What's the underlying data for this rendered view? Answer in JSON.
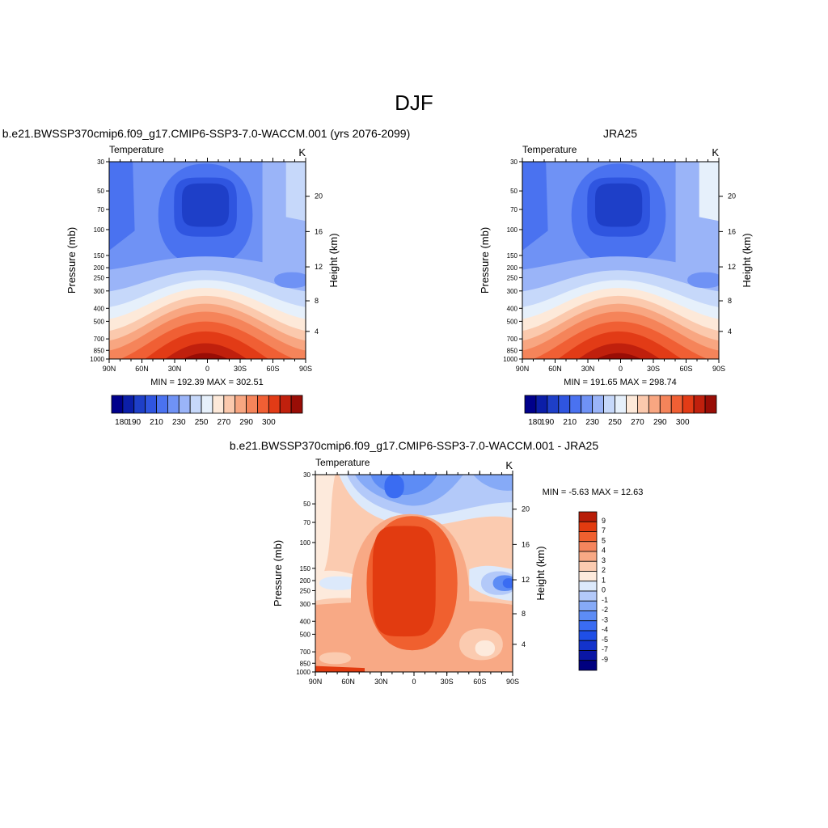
{
  "page_title": "DJF",
  "colors": {
    "temperature_scale": [
      "#00008b",
      "#0b1ea8",
      "#1e3fc8",
      "#2f55e0",
      "#4a72f0",
      "#6f92f5",
      "#9ab4f8",
      "#c6d8fa",
      "#e6f0fb",
      "#fde9d9",
      "#fbc9ad",
      "#f8a681",
      "#f5845a",
      "#f05f34",
      "#e23b16",
      "#c0200d",
      "#990d06",
      "#720000"
    ],
    "difference_scale": [
      "#00007f",
      "#0a16a4",
      "#1333cc",
      "#1f4fe6",
      "#3a6cf2",
      "#5d8cf5",
      "#86aaf7",
      "#b3c9f9",
      "#dce9fb",
      "#fdeadc",
      "#fbcbb0",
      "#f8a985",
      "#f5855d",
      "#f0602f",
      "#e23b10",
      "#b81d08",
      "#8b0000"
    ],
    "dif_lookup": {
      "-4": 4,
      "-3": 5,
      "-2": 6,
      "-1": 7,
      "0": 8,
      "1": 9,
      "2": 10,
      "3": 11,
      "4": 13,
      "5": 14
    }
  },
  "chart_data": [
    {
      "id": "model",
      "type": "heatmap",
      "title": "b.e21.BWSSP370cmip6.f09_g17.CMIP6-SSP3-7.0-WACCM.001 (yrs 2076-2099)",
      "left_label": "Temperature",
      "right_label": "K",
      "ylabel": "Pressure (mb)",
      "y2label": "Height (km)",
      "x_tick_labels": [
        "90N",
        "60N",
        "30N",
        "0",
        "30S",
        "60S",
        "90S"
      ],
      "y_tick_labels": [
        "30",
        "50",
        "70",
        "100",
        "150",
        "200",
        "250",
        "300",
        "400",
        "500",
        "700",
        "850",
        "1000"
      ],
      "y2_tick_labels": [
        "20",
        "16",
        "12",
        "8",
        "4"
      ],
      "stats": "MIN = 192.39  MAX = 302.51",
      "colorbar_labels": [
        "180",
        "190",
        "210",
        "230",
        "250",
        "270",
        "290",
        "300"
      ],
      "min": 192.39,
      "max": 302.51
    },
    {
      "id": "obs",
      "type": "heatmap",
      "title": "JRA25",
      "left_label": "Temperature",
      "right_label": "K",
      "ylabel": "Pressure (mb)",
      "y2label": "Height (km)",
      "x_tick_labels": [
        "90N",
        "60N",
        "30N",
        "0",
        "30S",
        "60S",
        "90S"
      ],
      "y_tick_labels": [
        "30",
        "50",
        "70",
        "100",
        "150",
        "200",
        "250",
        "300",
        "400",
        "500",
        "700",
        "850",
        "1000"
      ],
      "y2_tick_labels": [
        "20",
        "16",
        "12",
        "8",
        "4"
      ],
      "stats": "MIN = 191.65  MAX = 298.74",
      "colorbar_labels": [
        "180",
        "190",
        "210",
        "230",
        "250",
        "270",
        "290",
        "300"
      ],
      "min": 191.65,
      "max": 298.74
    },
    {
      "id": "diff",
      "type": "heatmap",
      "title": "b.e21.BWSSP370cmip6.f09_g17.CMIP6-SSP3-7.0-WACCM.001 - JRA25",
      "left_label": "Temperature",
      "right_label": "K",
      "ylabel": "Pressure (mb)",
      "y2label": "Height (km)",
      "x_tick_labels": [
        "90N",
        "60N",
        "30N",
        "0",
        "30S",
        "60S",
        "90S"
      ],
      "y_tick_labels": [
        "30",
        "50",
        "70",
        "100",
        "150",
        "200",
        "250",
        "300",
        "400",
        "500",
        "700",
        "850",
        "1000"
      ],
      "y2_tick_labels": [
        "20",
        "16",
        "12",
        "8",
        "4"
      ],
      "stats": "MIN =  -5.63  MAX =  12.63",
      "colorbar_labels": [
        "9",
        "7",
        "5",
        "4",
        "3",
        "2",
        "1",
        "0",
        "-1",
        "-2",
        "-3",
        "-4",
        "-5",
        "-7",
        "-9"
      ],
      "min": -5.63,
      "max": 12.63
    }
  ]
}
